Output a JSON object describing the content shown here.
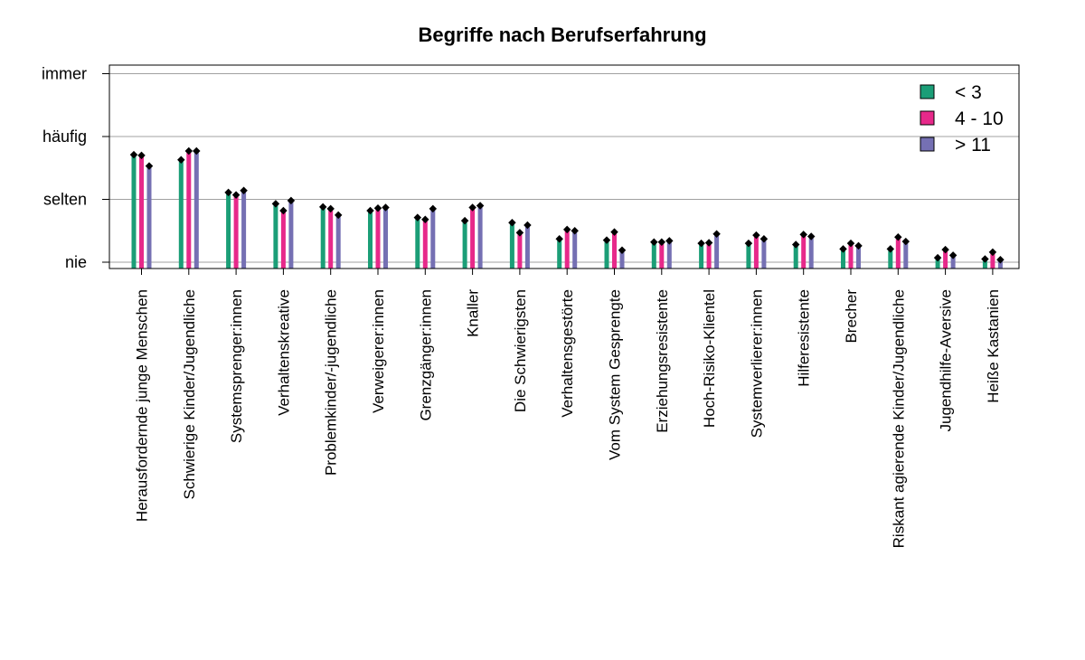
{
  "chart_data": {
    "type": "bar",
    "title": "Begriffe nach Berufserfahrung",
    "xlabel": "",
    "ylabel": "",
    "y_tick_labels": [
      "nie",
      "selten",
      "häufig",
      "immer"
    ],
    "y_tick_values": [
      1,
      2,
      3,
      4
    ],
    "ylim": [
      0.9,
      4.1
    ],
    "grid": true,
    "legend_position": "top-right",
    "categories": [
      "Herausfordernde junge Menschen",
      "Schwierige Kinder/Jugendliche",
      "Systemsprenger:innen",
      "Verhaltenskreative",
      "Problemkinder/-jugendliche",
      "Verweigerer:innen",
      "Grenzgänger:innen",
      "Knaller",
      "Die Schwierigsten",
      "Verhaltensgestörte",
      "Vom System Gesprengte",
      "Erziehungsresistente",
      "Hoch-Risiko-Klientel",
      "Systemverlierer:innen",
      "Hilferesistente",
      "Brecher",
      "Riskant agierende Kinder/Jugendliche",
      "Jugendhilfe-Aversive",
      "Heiße Kastanien"
    ],
    "series": [
      {
        "name": "< 3",
        "color": "#1b9e77",
        "values": [
          2.71,
          2.63,
          2.11,
          1.93,
          1.88,
          1.82,
          1.71,
          1.66,
          1.63,
          1.37,
          1.35,
          1.32,
          1.3,
          1.3,
          1.28,
          1.21,
          1.21,
          1.07,
          1.05
        ]
      },
      {
        "name": "4 - 10",
        "color": "#e7298a",
        "values": [
          2.7,
          2.77,
          2.07,
          1.82,
          1.85,
          1.86,
          1.68,
          1.87,
          1.47,
          1.52,
          1.48,
          1.32,
          1.31,
          1.43,
          1.44,
          1.3,
          1.4,
          1.2,
          1.16
        ]
      },
      {
        "name": "> 11",
        "color": "#7570b3",
        "values": [
          2.53,
          2.77,
          2.14,
          1.98,
          1.75,
          1.87,
          1.85,
          1.9,
          1.59,
          1.5,
          1.19,
          1.34,
          1.45,
          1.37,
          1.41,
          1.26,
          1.33,
          1.11,
          1.04
        ]
      }
    ]
  }
}
